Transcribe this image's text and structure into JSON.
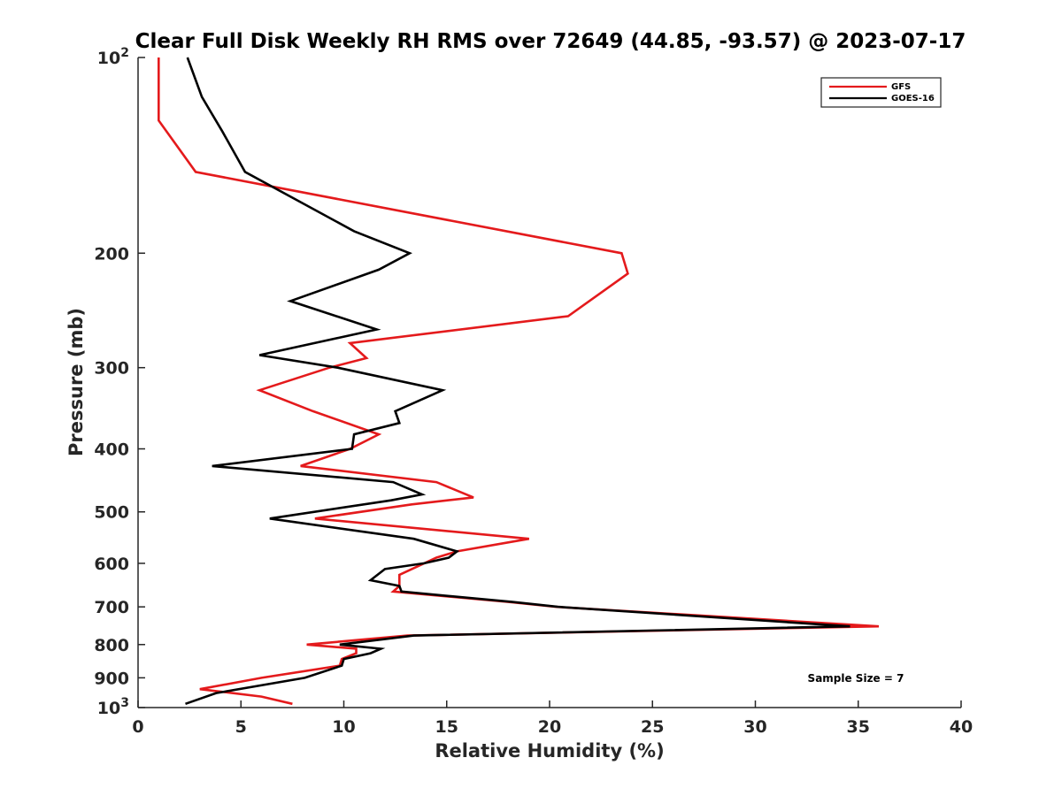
{
  "chart_data": {
    "type": "line",
    "title": "Clear Full Disk Weekly RH RMS over 72649 (44.85, -93.57) @ 2023-07-17",
    "xlabel": "Relative Humidity (%)",
    "ylabel": "Pressure (mb)",
    "xlim": [
      0,
      40
    ],
    "ylim": [
      100,
      1000
    ],
    "yscale": "log",
    "y_reversed": true,
    "grid": false,
    "legend_position": "top-right",
    "x_ticks": [
      "0",
      "5",
      "10",
      "15",
      "20",
      "25",
      "30",
      "35",
      "40"
    ],
    "y_ticks": [
      {
        "value": 100,
        "base": "10",
        "exp": "2"
      },
      {
        "value": 200,
        "label": "200"
      },
      {
        "value": 300,
        "label": "300"
      },
      {
        "value": 400,
        "label": "400"
      },
      {
        "value": 500,
        "label": "500"
      },
      {
        "value": 600,
        "label": "600"
      },
      {
        "value": 700,
        "label": "700"
      },
      {
        "value": 800,
        "label": "800"
      },
      {
        "value": 900,
        "label": "900"
      },
      {
        "value": 1000,
        "base": "10",
        "exp": "3"
      }
    ],
    "annotation": "Sample Size = 7",
    "series": [
      {
        "name": "GFS",
        "color": "#e41a1c",
        "points": [
          [
            1.0,
            100
          ],
          [
            1.0,
            125
          ],
          [
            2.8,
            150
          ],
          [
            23.5,
            200
          ],
          [
            23.8,
            215
          ],
          [
            20.9,
            250
          ],
          [
            10.3,
            275
          ],
          [
            11.1,
            290
          ],
          [
            9.3,
            300
          ],
          [
            5.9,
            325
          ],
          [
            8.5,
            350
          ],
          [
            11.7,
            380
          ],
          [
            10.3,
            400
          ],
          [
            7.9,
            425
          ],
          [
            14.5,
            450
          ],
          [
            16.3,
            475
          ],
          [
            13.3,
            487
          ],
          [
            8.6,
            512
          ],
          [
            19.0,
            550
          ],
          [
            15.5,
            575
          ],
          [
            14.5,
            588
          ],
          [
            12.7,
            625
          ],
          [
            12.7,
            650
          ],
          [
            12.4,
            663
          ],
          [
            18.0,
            688
          ],
          [
            20.3,
            700
          ],
          [
            36.0,
            750
          ],
          [
            13.1,
            775
          ],
          [
            8.2,
            800
          ],
          [
            10.6,
            812
          ],
          [
            10.6,
            825
          ],
          [
            9.9,
            842
          ],
          [
            9.8,
            862
          ],
          [
            6.0,
            900
          ],
          [
            3.0,
            937
          ],
          [
            6.0,
            962
          ],
          [
            7.5,
            987
          ]
        ]
      },
      {
        "name": "GOES-16",
        "color": "#000000",
        "points": [
          [
            2.4,
            100
          ],
          [
            3.1,
            115
          ],
          [
            4.1,
            130
          ],
          [
            5.2,
            150
          ],
          [
            10.5,
            185
          ],
          [
            13.2,
            200
          ],
          [
            11.7,
            212
          ],
          [
            7.4,
            237
          ],
          [
            11.6,
            262
          ],
          [
            5.9,
            287
          ],
          [
            9.7,
            300
          ],
          [
            14.8,
            325
          ],
          [
            12.5,
            350
          ],
          [
            12.7,
            365
          ],
          [
            10.5,
            380
          ],
          [
            10.4,
            400
          ],
          [
            3.6,
            425
          ],
          [
            12.4,
            450
          ],
          [
            13.8,
            470
          ],
          [
            12.3,
            480
          ],
          [
            6.4,
            512
          ],
          [
            13.4,
            550
          ],
          [
            15.5,
            575
          ],
          [
            15.1,
            588
          ],
          [
            13.9,
            600
          ],
          [
            12.0,
            612
          ],
          [
            11.3,
            637
          ],
          [
            12.7,
            650
          ],
          [
            12.8,
            663
          ],
          [
            18.2,
            688
          ],
          [
            20.4,
            700
          ],
          [
            34.6,
            750
          ],
          [
            13.4,
            775
          ],
          [
            9.8,
            800
          ],
          [
            11.8,
            812
          ],
          [
            11.3,
            825
          ],
          [
            10.0,
            842
          ],
          [
            9.9,
            862
          ],
          [
            8.1,
            900
          ],
          [
            3.8,
            950
          ],
          [
            2.3,
            987
          ]
        ]
      }
    ]
  }
}
